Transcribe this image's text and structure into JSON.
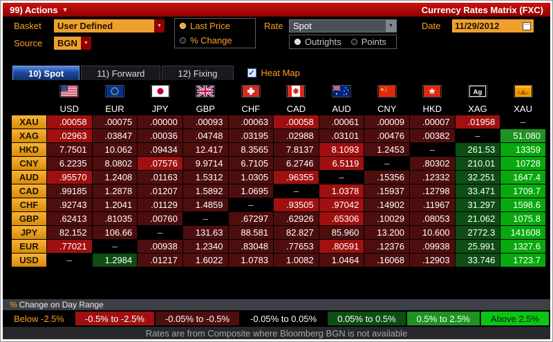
{
  "title_bar": {
    "actions_label": "99) Actions",
    "title": "Currency Rates Matrix (FXC)"
  },
  "controls": {
    "basket_label": "Basket",
    "basket_value": "User Defined",
    "source_label": "Source",
    "source_value": "BGN",
    "price_mode": {
      "options": [
        "Last Price",
        "% Change"
      ],
      "selected": "Last Price"
    },
    "rate_label": "Rate",
    "rate_value": "Spot",
    "rate_mode": {
      "options": [
        "Outrights",
        "Points"
      ],
      "selected": "Outrights"
    },
    "date_label": "Date",
    "date_value": "11/29/2012"
  },
  "tabs": [
    {
      "label": "10) Spot",
      "active": true
    },
    {
      "label": "11) Forward",
      "active": false
    },
    {
      "label": "12) Fixing",
      "active": false
    }
  ],
  "heat_map": {
    "label": "Heat Map",
    "checked": true
  },
  "heat_colors": {
    "r2": "#a01010",
    "r1": "#4e0e0e",
    "k": "#000000",
    "g1": "#0e4d14",
    "g2": "#1f9321",
    "g3": "#07a90e"
  },
  "matrix": {
    "empty": "–",
    "columns": [
      {
        "code": "USD",
        "flag": "us-flag-icon"
      },
      {
        "code": "EUR",
        "flag": "eu-flag-icon"
      },
      {
        "code": "JPY",
        "flag": "japan-flag-icon"
      },
      {
        "code": "GBP",
        "flag": "uk-flag-icon"
      },
      {
        "code": "CHF",
        "flag": "switzerland-flag-icon"
      },
      {
        "code": "CAD",
        "flag": "canada-flag-icon"
      },
      {
        "code": "AUD",
        "flag": "australia-flag-icon"
      },
      {
        "code": "CNY",
        "flag": "china-flag-icon"
      },
      {
        "code": "HKD",
        "flag": "hong-kong-flag-icon"
      },
      {
        "code": "XAG",
        "flag": "silver-ag-icon"
      },
      {
        "code": "XAU",
        "flag": "gold-icon"
      }
    ],
    "rows": [
      {
        "label": "XAU",
        "values": [
          ".00058",
          ".00075",
          ".00000",
          ".00093",
          ".00063",
          ".00058",
          ".00061",
          ".00009",
          ".00007",
          ".01958",
          "–"
        ],
        "heat": [
          "r2",
          "r1",
          "r1",
          "r1",
          "r1",
          "r2",
          "r1",
          "r1",
          "r1",
          "r2",
          "k"
        ]
      },
      {
        "label": "XAG",
        "values": [
          ".02963",
          ".03847",
          ".00036",
          ".04748",
          ".03195",
          ".02988",
          ".03101",
          ".00476",
          ".00382",
          "–",
          "51.080"
        ],
        "heat": [
          "r2",
          "r1",
          "r1",
          "r1",
          "r1",
          "r1",
          "r1",
          "r1",
          "r1",
          "k",
          "g2"
        ]
      },
      {
        "label": "HKD",
        "values": [
          "7.7501",
          "10.062",
          ".09434",
          "12.417",
          "8.3565",
          "7.8137",
          "8.1093",
          "1.2453",
          "–",
          "261.53",
          "13359"
        ],
        "heat": [
          "r1",
          "r1",
          "r1",
          "r1",
          "r1",
          "r1",
          "r2",
          "r1",
          "k",
          "g1",
          "g3"
        ]
      },
      {
        "label": "CNY",
        "values": [
          "6.2235",
          "8.0802",
          ".07576",
          "9.9714",
          "6.7105",
          "6.2746",
          "6.5119",
          "–",
          ".80302",
          "210.01",
          "10728"
        ],
        "heat": [
          "r1",
          "r1",
          "r2",
          "r1",
          "r1",
          "r1",
          "r2",
          "k",
          "r1",
          "g1",
          "g3"
        ]
      },
      {
        "label": "AUD",
        "values": [
          ".95570",
          "1.2408",
          ".01163",
          "1.5312",
          "1.0305",
          ".96355",
          "–",
          ".15356",
          ".12332",
          "32.251",
          "1647.4"
        ],
        "heat": [
          "r2",
          "r1",
          "r1",
          "r1",
          "r1",
          "r2",
          "k",
          "r1",
          "r1",
          "g1",
          "g3"
        ]
      },
      {
        "label": "CAD",
        "values": [
          ".99185",
          "1.2878",
          ".01207",
          "1.5892",
          "1.0695",
          "–",
          "1.0378",
          ".15937",
          ".12798",
          "33.471",
          "1709.7"
        ],
        "heat": [
          "r1",
          "r1",
          "r1",
          "r1",
          "r1",
          "k",
          "r2",
          "r1",
          "r1",
          "g1",
          "g3"
        ]
      },
      {
        "label": "CHF",
        "values": [
          ".92743",
          "1.2041",
          ".01129",
          "1.4859",
          "–",
          ".93505",
          ".97042",
          ".14902",
          ".11967",
          "31.297",
          "1598.6"
        ],
        "heat": [
          "r1",
          "r1",
          "r1",
          "r1",
          "k",
          "r2",
          "r2",
          "r1",
          "r1",
          "g1",
          "g3"
        ]
      },
      {
        "label": "GBP",
        "values": [
          ".62413",
          ".81035",
          ".00760",
          "–",
          ".67297",
          ".62926",
          ".65306",
          ".10029",
          ".08053",
          "21.062",
          "1075.8"
        ],
        "heat": [
          "r1",
          "r1",
          "r1",
          "k",
          "r1",
          "r1",
          "r2",
          "r1",
          "r1",
          "g1",
          "g3"
        ]
      },
      {
        "label": "JPY",
        "values": [
          "82.152",
          "106.66",
          "–",
          "131.63",
          "88.581",
          "82.827",
          "85.960",
          "13.200",
          "10.600",
          "2772.3",
          "141608"
        ],
        "heat": [
          "r1",
          "r1",
          "k",
          "r1",
          "r1",
          "r1",
          "r1",
          "r1",
          "r1",
          "g1",
          "g3"
        ]
      },
      {
        "label": "EUR",
        "values": [
          ".77021",
          "–",
          ".00938",
          "1.2340",
          ".83048",
          ".77653",
          ".80591",
          ".12376",
          ".09938",
          "25.991",
          "1327.6"
        ],
        "heat": [
          "r2",
          "k",
          "r1",
          "r1",
          "r1",
          "r1",
          "r2",
          "r1",
          "r1",
          "g1",
          "g3"
        ]
      },
      {
        "label": "USD",
        "values": [
          "–",
          "1.2984",
          ".01217",
          "1.6022",
          "1.0783",
          "1.0082",
          "1.0464",
          ".16068",
          ".12903",
          "33.746",
          "1723.7"
        ],
        "heat": [
          "k",
          "g1",
          "r1",
          "r1",
          "r1",
          "r1",
          "r1",
          "r1",
          "r1",
          "g1",
          "g3"
        ]
      }
    ]
  },
  "legend": {
    "title_prefix": "%",
    "title_rest": "Change on Day Range",
    "buckets": [
      {
        "label": "Below -2.5%",
        "bg": "#000000",
        "fg": "#ff9e21"
      },
      {
        "label": "-0.5% to -2.5%",
        "bg": "#a01010",
        "fg": "#ffffff"
      },
      {
        "label": "-0.05% to -0.5%",
        "bg": "#4e0e0e",
        "fg": "#ffffff"
      },
      {
        "label": "-0.05% to 0.05%",
        "bg": "#000000",
        "fg": "#ffffff"
      },
      {
        "label": "0.05% to 0.5%",
        "bg": "#0e4d14",
        "fg": "#ffffff"
      },
      {
        "label": "0.5% to 2.5%",
        "bg": "#1f9321",
        "fg": "#ffffff"
      },
      {
        "label": "Above 2.5%",
        "bg": "#0cc615",
        "fg": "#04230a"
      }
    ]
  },
  "footer": "Rates are from Composite where Bloomberg BGN is not available"
}
